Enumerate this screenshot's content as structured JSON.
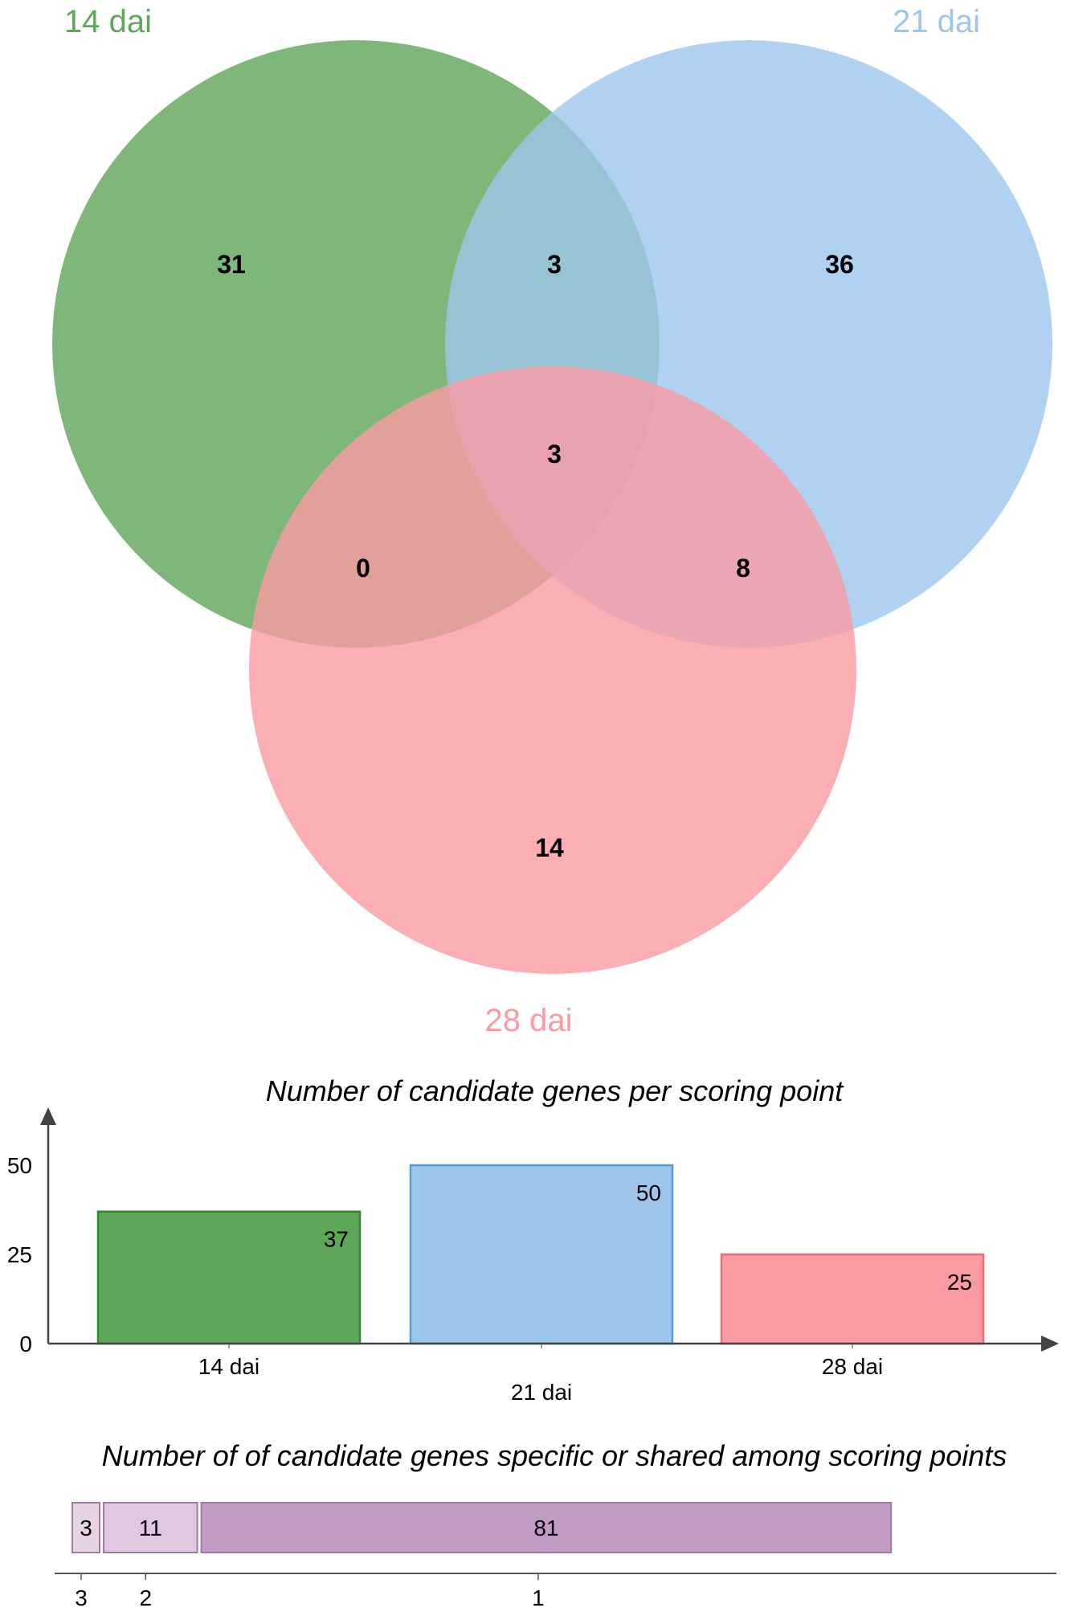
{
  "chart_data": [
    {
      "type": "venn",
      "sets": [
        {
          "name": "14 dai",
          "color": "#5fa55a"
        },
        {
          "name": "21 dai",
          "color": "#9ec5ec"
        },
        {
          "name": "28 dai",
          "color": "#fb9aa2"
        }
      ],
      "regions": {
        "only_14": "31",
        "14_21": "3",
        "only_21": "36",
        "all": "3",
        "14_28": "0",
        "21_28": "8",
        "only_28": "14"
      }
    },
    {
      "type": "bar",
      "title": "Number of candidate genes per scoring point",
      "categories": [
        "14 dai",
        "21 dai",
        "28 dai"
      ],
      "values": [
        37,
        50,
        25
      ],
      "colors": [
        "#5fa55a",
        "#9ec5ec",
        "#fb9aa2"
      ],
      "border_colors": [
        "#2f8a2f",
        "#5b9bd5",
        "#ee6a78"
      ],
      "yticks": [
        0,
        25,
        50
      ],
      "ylim": [
        0,
        60
      ]
    },
    {
      "type": "stacked-bar",
      "title": "Number of of candidate genes specific or shared among scoring points",
      "categories": [
        "3",
        "2",
        "1"
      ],
      "values": [
        3,
        11,
        81
      ],
      "colors": [
        "#e6d3e6",
        "#e0c8e0",
        "#c29bc4"
      ],
      "border_color": "#a07aa3"
    }
  ]
}
